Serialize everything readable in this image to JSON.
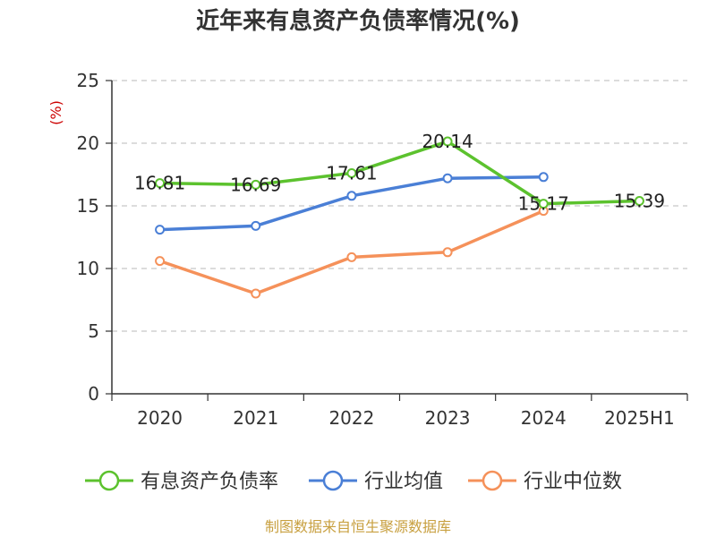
{
  "chart_data": {
    "type": "line",
    "title": "近年来有息资产负债率情况(%)",
    "y_unit": "(%)",
    "categories": [
      "2020",
      "2021",
      "2022",
      "2023",
      "2024",
      "2025H1"
    ],
    "ylim": [
      0,
      25
    ],
    "yticks": [
      "0",
      "5",
      "10",
      "15",
      "20",
      "25"
    ],
    "grid": "horizontal-dashed",
    "legend_position": "bottom",
    "series": [
      {
        "name": "有息资产负债率",
        "color": "#5cc22e",
        "values": [
          16.81,
          16.69,
          17.61,
          20.14,
          15.17,
          15.39
        ],
        "labels": [
          "16.81",
          "16.69",
          "17.61",
          "20.14",
          "15.17",
          "15.39"
        ]
      },
      {
        "name": "行业均值",
        "color": "#4a7fd6",
        "values": [
          13.1,
          13.4,
          15.8,
          17.2,
          17.3,
          null
        ]
      },
      {
        "name": "行业中位数",
        "color": "#f5915a",
        "values": [
          10.6,
          8.0,
          10.9,
          11.3,
          14.6,
          null
        ]
      }
    ]
  },
  "source": "制图数据来自恒生聚源数据库"
}
